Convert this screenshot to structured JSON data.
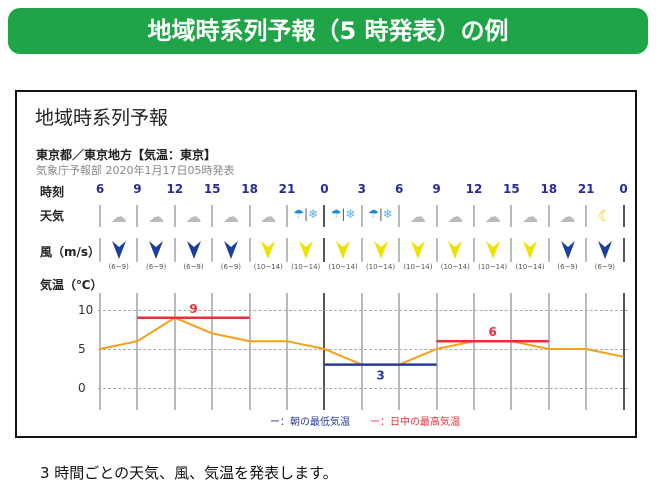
{
  "banner": {
    "title": "地域時系列予報（5 時発表）の例",
    "color": "#1fa447"
  },
  "panel": {
    "title": "地域時系列予報",
    "region": "東京都／東京地方【気温：東京】",
    "issued": "気象庁予報部 2020年1月17日05時発表",
    "row_labels": {
      "time": "時刻",
      "weather": "天気",
      "wind": "風（m/s）",
      "temp": "気温（℃）"
    },
    "times": [
      "6",
      "9",
      "12",
      "15",
      "18",
      "21",
      "0",
      "3",
      "6",
      "9",
      "12",
      "15",
      "18",
      "21",
      "0"
    ],
    "weather": [
      "cloudy",
      "cloudy",
      "cloudy",
      "cloudy",
      "cloudy",
      "rain-snow",
      "rain-snow",
      "rain-snow",
      "cloudy",
      "cloudy",
      "cloudy",
      "cloudy",
      "cloudy",
      "clear-night"
    ],
    "wind": [
      {
        "range": "(6~9)",
        "level": "weak"
      },
      {
        "range": "(6~9)",
        "level": "weak"
      },
      {
        "range": "(6~9)",
        "level": "weak"
      },
      {
        "range": "(6~9)",
        "level": "weak"
      },
      {
        "range": "(10~14)",
        "level": "strong"
      },
      {
        "range": "(10~14)",
        "level": "strong"
      },
      {
        "range": "(10~14)",
        "level": "strong"
      },
      {
        "range": "(10~14)",
        "level": "strong"
      },
      {
        "range": "(10~14)",
        "level": "strong"
      },
      {
        "range": "(10~14)",
        "level": "strong"
      },
      {
        "range": "(10~14)",
        "level": "strong"
      },
      {
        "range": "(10~14)",
        "level": "strong"
      },
      {
        "range": "(6~9)",
        "level": "weak"
      },
      {
        "range": "(6~9)",
        "level": "weak"
      }
    ],
    "colors": {
      "weak": "#1a3f9a",
      "strong": "#f0e000",
      "temp_line": "#f5a01a",
      "max": "#e8303a",
      "min": "#2a3a9a",
      "time": "#2a2a9a"
    }
  },
  "chart_data": {
    "type": "line",
    "x": [
      "6",
      "9",
      "12",
      "15",
      "18",
      "21",
      "0",
      "3",
      "6",
      "9",
      "12",
      "15",
      "18",
      "21",
      "0"
    ],
    "values": [
      5,
      6,
      9,
      7,
      6,
      6,
      5,
      3,
      3,
      5,
      6,
      6,
      5,
      5,
      4
    ],
    "yticks": [
      "10",
      "5",
      "0"
    ],
    "ylim": [
      -1.5,
      12
    ],
    "grid": true,
    "annotations": [
      {
        "type": "max",
        "value": 9,
        "from_index": 1,
        "to_index": 4,
        "label": "9"
      },
      {
        "type": "min",
        "value": 3,
        "from_index": 6,
        "to_index": 9,
        "label": "3"
      },
      {
        "type": "max",
        "value": 6,
        "from_index": 9,
        "to_index": 12,
        "label": "6"
      }
    ],
    "legend": {
      "min": "ー：朝の最低気温",
      "max": "ー：日中の最高気温",
      "position": "bottom"
    }
  },
  "caption": "3 時間ごとの天気、風、気温を発表します。"
}
